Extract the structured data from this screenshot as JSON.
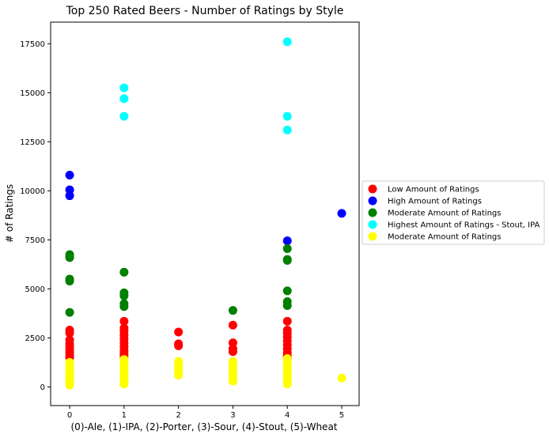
{
  "chart_data": {
    "type": "scatter",
    "title": "Top 250 Rated Beers - Number of Ratings by Style",
    "xlabel": "(0)-Ale, (1)-IPA, (2)-Porter, (3)-Sour, (4)-Stout, (5)-Wheat",
    "ylabel": "# of Ratings",
    "xlim": [
      -0.35,
      5.32
    ],
    "ylim": [
      -950,
      18600
    ],
    "xticks": [
      0,
      1,
      2,
      3,
      4,
      5
    ],
    "yticks": [
      0,
      2500,
      5000,
      7500,
      10000,
      12500,
      15000,
      17500
    ],
    "ytick_labels": [
      "0",
      "2500",
      "5000",
      "7500",
      "10000",
      "12500",
      "15000",
      "17500"
    ],
    "legend_position": "right",
    "series": [
      {
        "name": "Low Amount of Ratings",
        "color": "#ff0000",
        "points": [
          [
            0,
            2900
          ],
          [
            0,
            2750
          ],
          [
            0,
            2400
          ],
          [
            0,
            2200
          ],
          [
            0,
            2050
          ],
          [
            0,
            1900
          ],
          [
            0,
            1750
          ],
          [
            0,
            1600
          ],
          [
            0,
            1500
          ],
          [
            1,
            3350
          ],
          [
            1,
            3000
          ],
          [
            1,
            2850
          ],
          [
            1,
            2650
          ],
          [
            1,
            2450
          ],
          [
            1,
            2250
          ],
          [
            1,
            2050
          ],
          [
            1,
            1850
          ],
          [
            1,
            1700
          ],
          [
            1,
            1550
          ],
          [
            2,
            2800
          ],
          [
            2,
            2200
          ],
          [
            2,
            2100
          ],
          [
            3,
            3150
          ],
          [
            3,
            2250
          ],
          [
            3,
            1950
          ],
          [
            3,
            1800
          ],
          [
            4,
            3350
          ],
          [
            4,
            2900
          ],
          [
            4,
            2750
          ],
          [
            4,
            2550
          ],
          [
            4,
            2350
          ],
          [
            4,
            2150
          ],
          [
            4,
            1950
          ],
          [
            4,
            1750
          ],
          [
            4,
            1600
          ],
          [
            4,
            1500
          ]
        ]
      },
      {
        "name": "High Amount of Ratings",
        "color": "#0000ff",
        "points": [
          [
            0,
            10800
          ],
          [
            0,
            10050
          ],
          [
            0,
            9750
          ],
          [
            4,
            7450
          ],
          [
            5,
            8850
          ]
        ]
      },
      {
        "name": "Moderate Amount of Ratings",
        "color": "#008000",
        "points": [
          [
            0,
            6750
          ],
          [
            0,
            6600
          ],
          [
            0,
            5500
          ],
          [
            0,
            5400
          ],
          [
            0,
            3800
          ],
          [
            1,
            5850
          ],
          [
            1,
            4800
          ],
          [
            1,
            4650
          ],
          [
            1,
            4250
          ],
          [
            1,
            4100
          ],
          [
            3,
            3900
          ],
          [
            4,
            7050
          ],
          [
            4,
            6500
          ],
          [
            4,
            6450
          ],
          [
            4,
            4900
          ],
          [
            4,
            4350
          ],
          [
            4,
            4150
          ]
        ]
      },
      {
        "name": "Highest Amount of Ratings - Stout, IPA",
        "color": "#00ffff",
        "points": [
          [
            1,
            15250
          ],
          [
            1,
            14700
          ],
          [
            1,
            13800
          ],
          [
            4,
            17600
          ],
          [
            4,
            13800
          ],
          [
            4,
            13100
          ]
        ]
      },
      {
        "name": "Moderate Amount of Ratings",
        "color": "#ffff00",
        "points": [
          [
            0,
            1250
          ],
          [
            0,
            1100
          ],
          [
            0,
            950
          ],
          [
            0,
            800
          ],
          [
            0,
            650
          ],
          [
            0,
            500
          ],
          [
            0,
            350
          ],
          [
            0,
            200
          ],
          [
            0,
            100
          ],
          [
            1,
            1400
          ],
          [
            1,
            1250
          ],
          [
            1,
            1100
          ],
          [
            1,
            950
          ],
          [
            1,
            800
          ],
          [
            1,
            650
          ],
          [
            1,
            500
          ],
          [
            1,
            350
          ],
          [
            1,
            200
          ],
          [
            1,
            150
          ],
          [
            2,
            1300
          ],
          [
            2,
            1150
          ],
          [
            2,
            1000
          ],
          [
            2,
            850
          ],
          [
            2,
            700
          ],
          [
            2,
            600
          ],
          [
            3,
            1300
          ],
          [
            3,
            1150
          ],
          [
            3,
            1000
          ],
          [
            3,
            850
          ],
          [
            3,
            700
          ],
          [
            3,
            550
          ],
          [
            3,
            400
          ],
          [
            3,
            300
          ],
          [
            4,
            1450
          ],
          [
            4,
            1300
          ],
          [
            4,
            1150
          ],
          [
            4,
            1000
          ],
          [
            4,
            850
          ],
          [
            4,
            700
          ],
          [
            4,
            550
          ],
          [
            4,
            400
          ],
          [
            4,
            250
          ],
          [
            4,
            150
          ],
          [
            5,
            450
          ]
        ]
      }
    ]
  }
}
